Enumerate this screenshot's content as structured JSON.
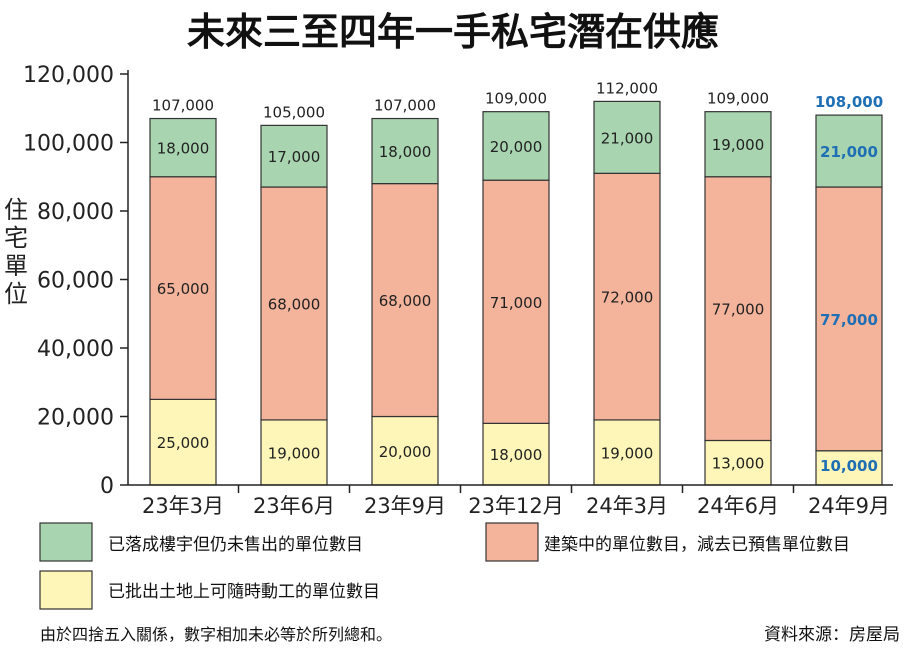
{
  "title": "未來三至四年一手私宅潛在供應",
  "note": "由於四捨五入關係，數字相加未必等於所列總和。",
  "source": "資料來源：房屋局",
  "colors": {
    "completed": "#a8d5b0",
    "construction": "#f4b49c",
    "land": "#fdf6b8",
    "highlight": "#1f6fb5",
    "stroke": "#333333"
  },
  "chart_data": {
    "type": "bar",
    "stacked": true,
    "ylabel": "住宅單位",
    "ylim": [
      0,
      120000
    ],
    "yticks": [
      "0",
      "20,000",
      "40,000",
      "60,000",
      "80,000",
      "100,000",
      "120,000"
    ],
    "ytick_values": [
      0,
      20000,
      40000,
      60000,
      80000,
      100000,
      120000
    ],
    "categories": [
      "23年3月",
      "23年6月",
      "23年9月",
      "23年12月",
      "24年3月",
      "24年6月",
      "24年9月"
    ],
    "highlight_index": 6,
    "series": [
      {
        "name": "已批出土地上可隨時動工的單位數目",
        "key": "land",
        "values": [
          25000,
          19000,
          20000,
          18000,
          19000,
          13000,
          10000
        ],
        "labels": [
          "25,000",
          "19,000",
          "20,000",
          "18,000",
          "19,000",
          "13,000",
          "10,000"
        ]
      },
      {
        "name": "建築中的單位數目，減去已預售單位數目",
        "key": "construction",
        "values": [
          65000,
          68000,
          68000,
          71000,
          72000,
          77000,
          77000
        ],
        "labels": [
          "65,000",
          "68,000",
          "68,000",
          "71,000",
          "72,000",
          "77,000",
          "77,000"
        ]
      },
      {
        "name": "已落成樓宇但仍未售出的單位數目",
        "key": "completed",
        "values": [
          18000,
          17000,
          18000,
          20000,
          21000,
          19000,
          21000
        ],
        "labels": [
          "18,000",
          "17,000",
          "18,000",
          "20,000",
          "21,000",
          "19,000",
          "21,000"
        ]
      }
    ],
    "totals": [
      107000,
      105000,
      107000,
      109000,
      112000,
      109000,
      108000
    ],
    "total_labels": [
      "107,000",
      "105,000",
      "107,000",
      "109,000",
      "112,000",
      "109,000",
      "108,000"
    ],
    "legend": [
      {
        "label": "已落成樓宇但仍未售出的單位數目",
        "key": "completed"
      },
      {
        "label": "建築中的單位數目，減去已預售單位數目",
        "key": "construction"
      },
      {
        "label": "已批出土地上可隨時動工的單位數目",
        "key": "land"
      }
    ]
  }
}
